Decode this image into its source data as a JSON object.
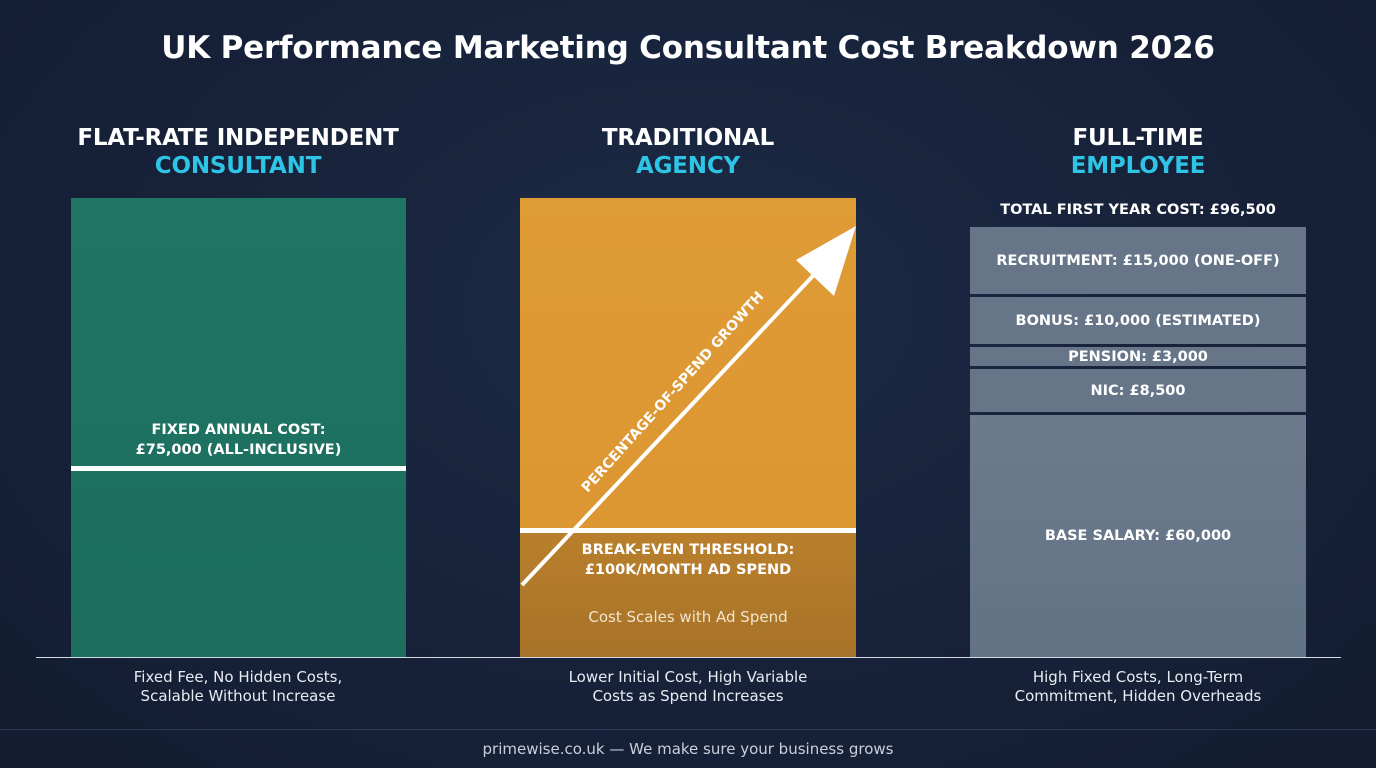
{
  "title": "UK Performance Marketing Consultant Cost Breakdown 2026",
  "columns": [
    {
      "heading_line1": "FLAT-RATE INDEPENDENT",
      "heading_line2": "CONSULTANT",
      "bar_label_line1": "FIXED ANNUAL COST:",
      "bar_label_line2": "£75,000 (ALL-INCLUSIVE)",
      "caption_line1": "Fixed Fee, No Hidden Costs,",
      "caption_line2": "Scalable Without Increase"
    },
    {
      "heading_line1": "TRADITIONAL",
      "heading_line2": "AGENCY",
      "arrow_label": "PERCENTAGE-OF-SPEND GROWTH",
      "threshold_line1": "BREAK-EVEN THRESHOLD:",
      "threshold_line2": "£100K/MONTH AD SPEND",
      "note": "Cost Scales with Ad Spend",
      "caption_line1": "Lower Initial Cost, High Variable",
      "caption_line2": "Costs as Spend Increases"
    },
    {
      "heading_line1": "FULL-TIME",
      "heading_line2": "EMPLOYEE",
      "total_label": "TOTAL FIRST YEAR COST: £96,500",
      "segments": [
        "RECRUITMENT: £15,000 (ONE-OFF)",
        "BONUS: £10,000 (ESTIMATED)",
        "PENSION: £3,000",
        "NIC: £8,500",
        "BASE SALARY: £60,000"
      ],
      "caption_line1": "High Fixed Costs, Long-Term",
      "caption_line2": "Commitment, Hidden Overheads"
    }
  ],
  "footer": "primewise.co.uk — We make sure your business grows",
  "colors": {
    "background": "#17223a",
    "accent": "#2ec4e6",
    "consultant": "#1f7563",
    "agency": "#df9b35",
    "agency_dark": "#b07a2b",
    "employee": "#667688"
  },
  "chart_data": {
    "type": "bar",
    "title": "UK Performance Marketing Consultant Cost Breakdown 2026",
    "categories": [
      "FLAT-RATE INDEPENDENT CONSULTANT",
      "TRADITIONAL AGENCY",
      "FULL-TIME EMPLOYEE"
    ],
    "consultant": {
      "fixed_annual_cost": 75000
    },
    "agency": {
      "break_even_monthly_ad_spend": 100000,
      "trend": "increasing"
    },
    "employee": {
      "total_first_year_cost": 96500,
      "components": [
        {
          "name": "RECRUITMENT",
          "value": 15000
        },
        {
          "name": "BONUS",
          "value": 10000
        },
        {
          "name": "PENSION",
          "value": 3000
        },
        {
          "name": "NIC",
          "value": 8500
        },
        {
          "name": "BASE SALARY",
          "value": 60000
        }
      ]
    }
  }
}
